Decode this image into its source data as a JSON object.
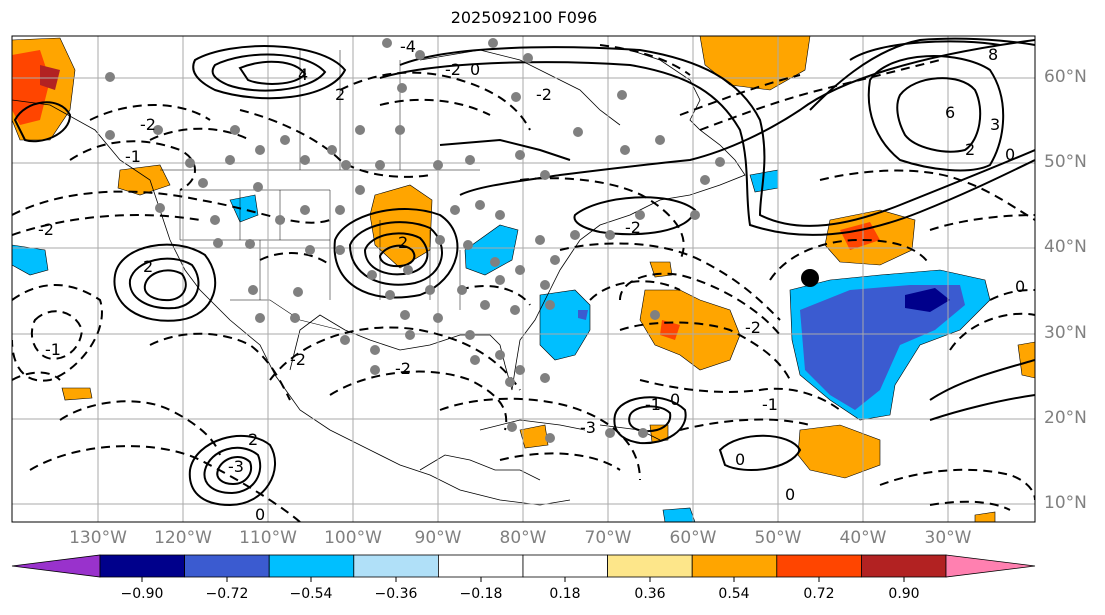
{
  "title": "2025092100 F096",
  "lat_labels": [
    "60°N",
    "50°N",
    "40°N",
    "30°N",
    "20°N",
    "10°N"
  ],
  "lon_labels": [
    "130°W",
    "120°W",
    "110°W",
    "100°W",
    "90°W",
    "80°W",
    "70°W",
    "60°W",
    "50°W",
    "40°W",
    "30°W"
  ],
  "colorbar": {
    "ticks": [
      "−0.90",
      "−0.72",
      "−0.54",
      "−0.36",
      "−0.18",
      "0.18",
      "0.36",
      "0.54",
      "0.72",
      "0.90"
    ],
    "colors": [
      "#9932cc",
      "#00008b",
      "#3b5bd0",
      "#00bfff",
      "#b0e0f8",
      "#ffffff",
      "#fde68a",
      "#ffa500",
      "#ff4500",
      "#b22222",
      "#ff80b0"
    ]
  },
  "contour_labels": {
    "a": "4",
    "b": "2",
    "c": "-2",
    "d": "-4",
    "e": "2",
    "f": "0",
    "g": "-2",
    "h": "-2",
    "i": "-1",
    "j": "2",
    "k": "-1",
    "l": "-2",
    "m": "-2",
    "n": "2",
    "o": "-3",
    "p": "8",
    "q": "6",
    "r": "3",
    "s": "2",
    "t": "0",
    "u": "-2",
    "v": "-2",
    "w": "-1",
    "x": "0",
    "y": "0",
    "z": "-1",
    "aa": "0",
    "ab": "-3",
    "ac": "0",
    "ad": "0",
    "ae": "-2"
  }
}
